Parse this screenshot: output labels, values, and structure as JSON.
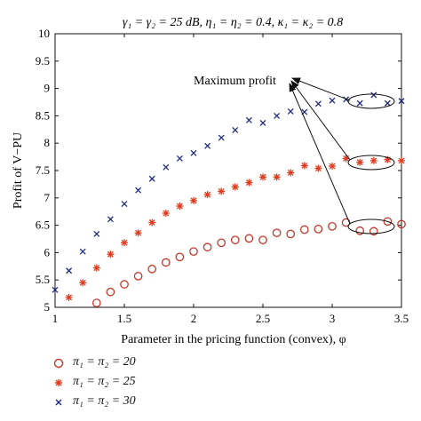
{
  "chart_data": {
    "type": "scatter",
    "title": "γ₁ = γ₂ = 25 dB, η₁ = η₂ = 0.4, κ₁ = κ₂ = 0.8",
    "xlabel": "Parameter in the pricing function (convex), φ",
    "ylabel": "Profit of V−PU",
    "xlim": [
      1,
      3.5
    ],
    "ylim": [
      5,
      10
    ],
    "x_ticks": [
      "1",
      "1.5",
      "2",
      "2.5",
      "3",
      "3.5"
    ],
    "y_ticks": [
      "5",
      "5.5",
      "6",
      "6.5",
      "7",
      "7.5",
      "8",
      "8.5",
      "9",
      "9.5",
      "10"
    ],
    "grid": false,
    "legend_position": "below",
    "annotation": "Maximum profit",
    "series": [
      {
        "name": "π₁ = π₂ = 20",
        "marker": "circle",
        "color": "#c0392b",
        "x": [
          1.1,
          1.2,
          1.3,
          1.4,
          1.5,
          1.6,
          1.7,
          1.8,
          1.9,
          2.0,
          2.1,
          2.2,
          2.3,
          2.4,
          2.5,
          2.6,
          2.7,
          2.8,
          2.9,
          3.0,
          3.1,
          3.2,
          3.3,
          3.4,
          3.5
        ],
        "y": [
          4.88,
          4.97,
          5.08,
          5.28,
          5.42,
          5.57,
          5.7,
          5.82,
          5.92,
          6.02,
          6.1,
          6.18,
          6.23,
          6.26,
          6.23,
          6.36,
          6.34,
          6.42,
          6.43,
          6.48,
          6.55,
          6.4,
          6.39,
          6.57,
          6.52
        ]
      },
      {
        "name": "π₁ = π₂ = 25",
        "marker": "asterisk",
        "color": "#e03b1f",
        "x": [
          1.0,
          1.1,
          1.2,
          1.3,
          1.4,
          1.5,
          1.6,
          1.7,
          1.8,
          1.9,
          2.0,
          2.1,
          2.2,
          2.3,
          2.4,
          2.5,
          2.6,
          2.7,
          2.8,
          2.9,
          3.0,
          3.1,
          3.2,
          3.3,
          3.4,
          3.5
        ],
        "y": [
          4.75,
          5.18,
          5.45,
          5.72,
          5.97,
          6.18,
          6.36,
          6.55,
          6.72,
          6.85,
          6.95,
          7.06,
          7.12,
          7.2,
          7.28,
          7.38,
          7.38,
          7.46,
          7.59,
          7.54,
          7.58,
          7.72,
          7.65,
          7.68,
          7.7,
          7.68
        ]
      },
      {
        "name": "π₁ = π₂ = 30",
        "marker": "cross",
        "color": "#1f2a80",
        "x": [
          1.0,
          1.1,
          1.2,
          1.3,
          1.4,
          1.5,
          1.6,
          1.7,
          1.8,
          1.9,
          2.0,
          2.1,
          2.2,
          2.3,
          2.4,
          2.5,
          2.6,
          2.7,
          2.8,
          2.9,
          3.0,
          3.1,
          3.2,
          3.3,
          3.4,
          3.5
        ],
        "y": [
          5.32,
          5.67,
          6.02,
          6.34,
          6.61,
          6.89,
          7.14,
          7.35,
          7.56,
          7.72,
          7.82,
          7.95,
          8.1,
          8.24,
          8.42,
          8.37,
          8.5,
          8.58,
          8.57,
          8.72,
          8.78,
          8.8,
          8.73,
          8.88,
          8.73,
          8.77
        ]
      }
    ]
  }
}
